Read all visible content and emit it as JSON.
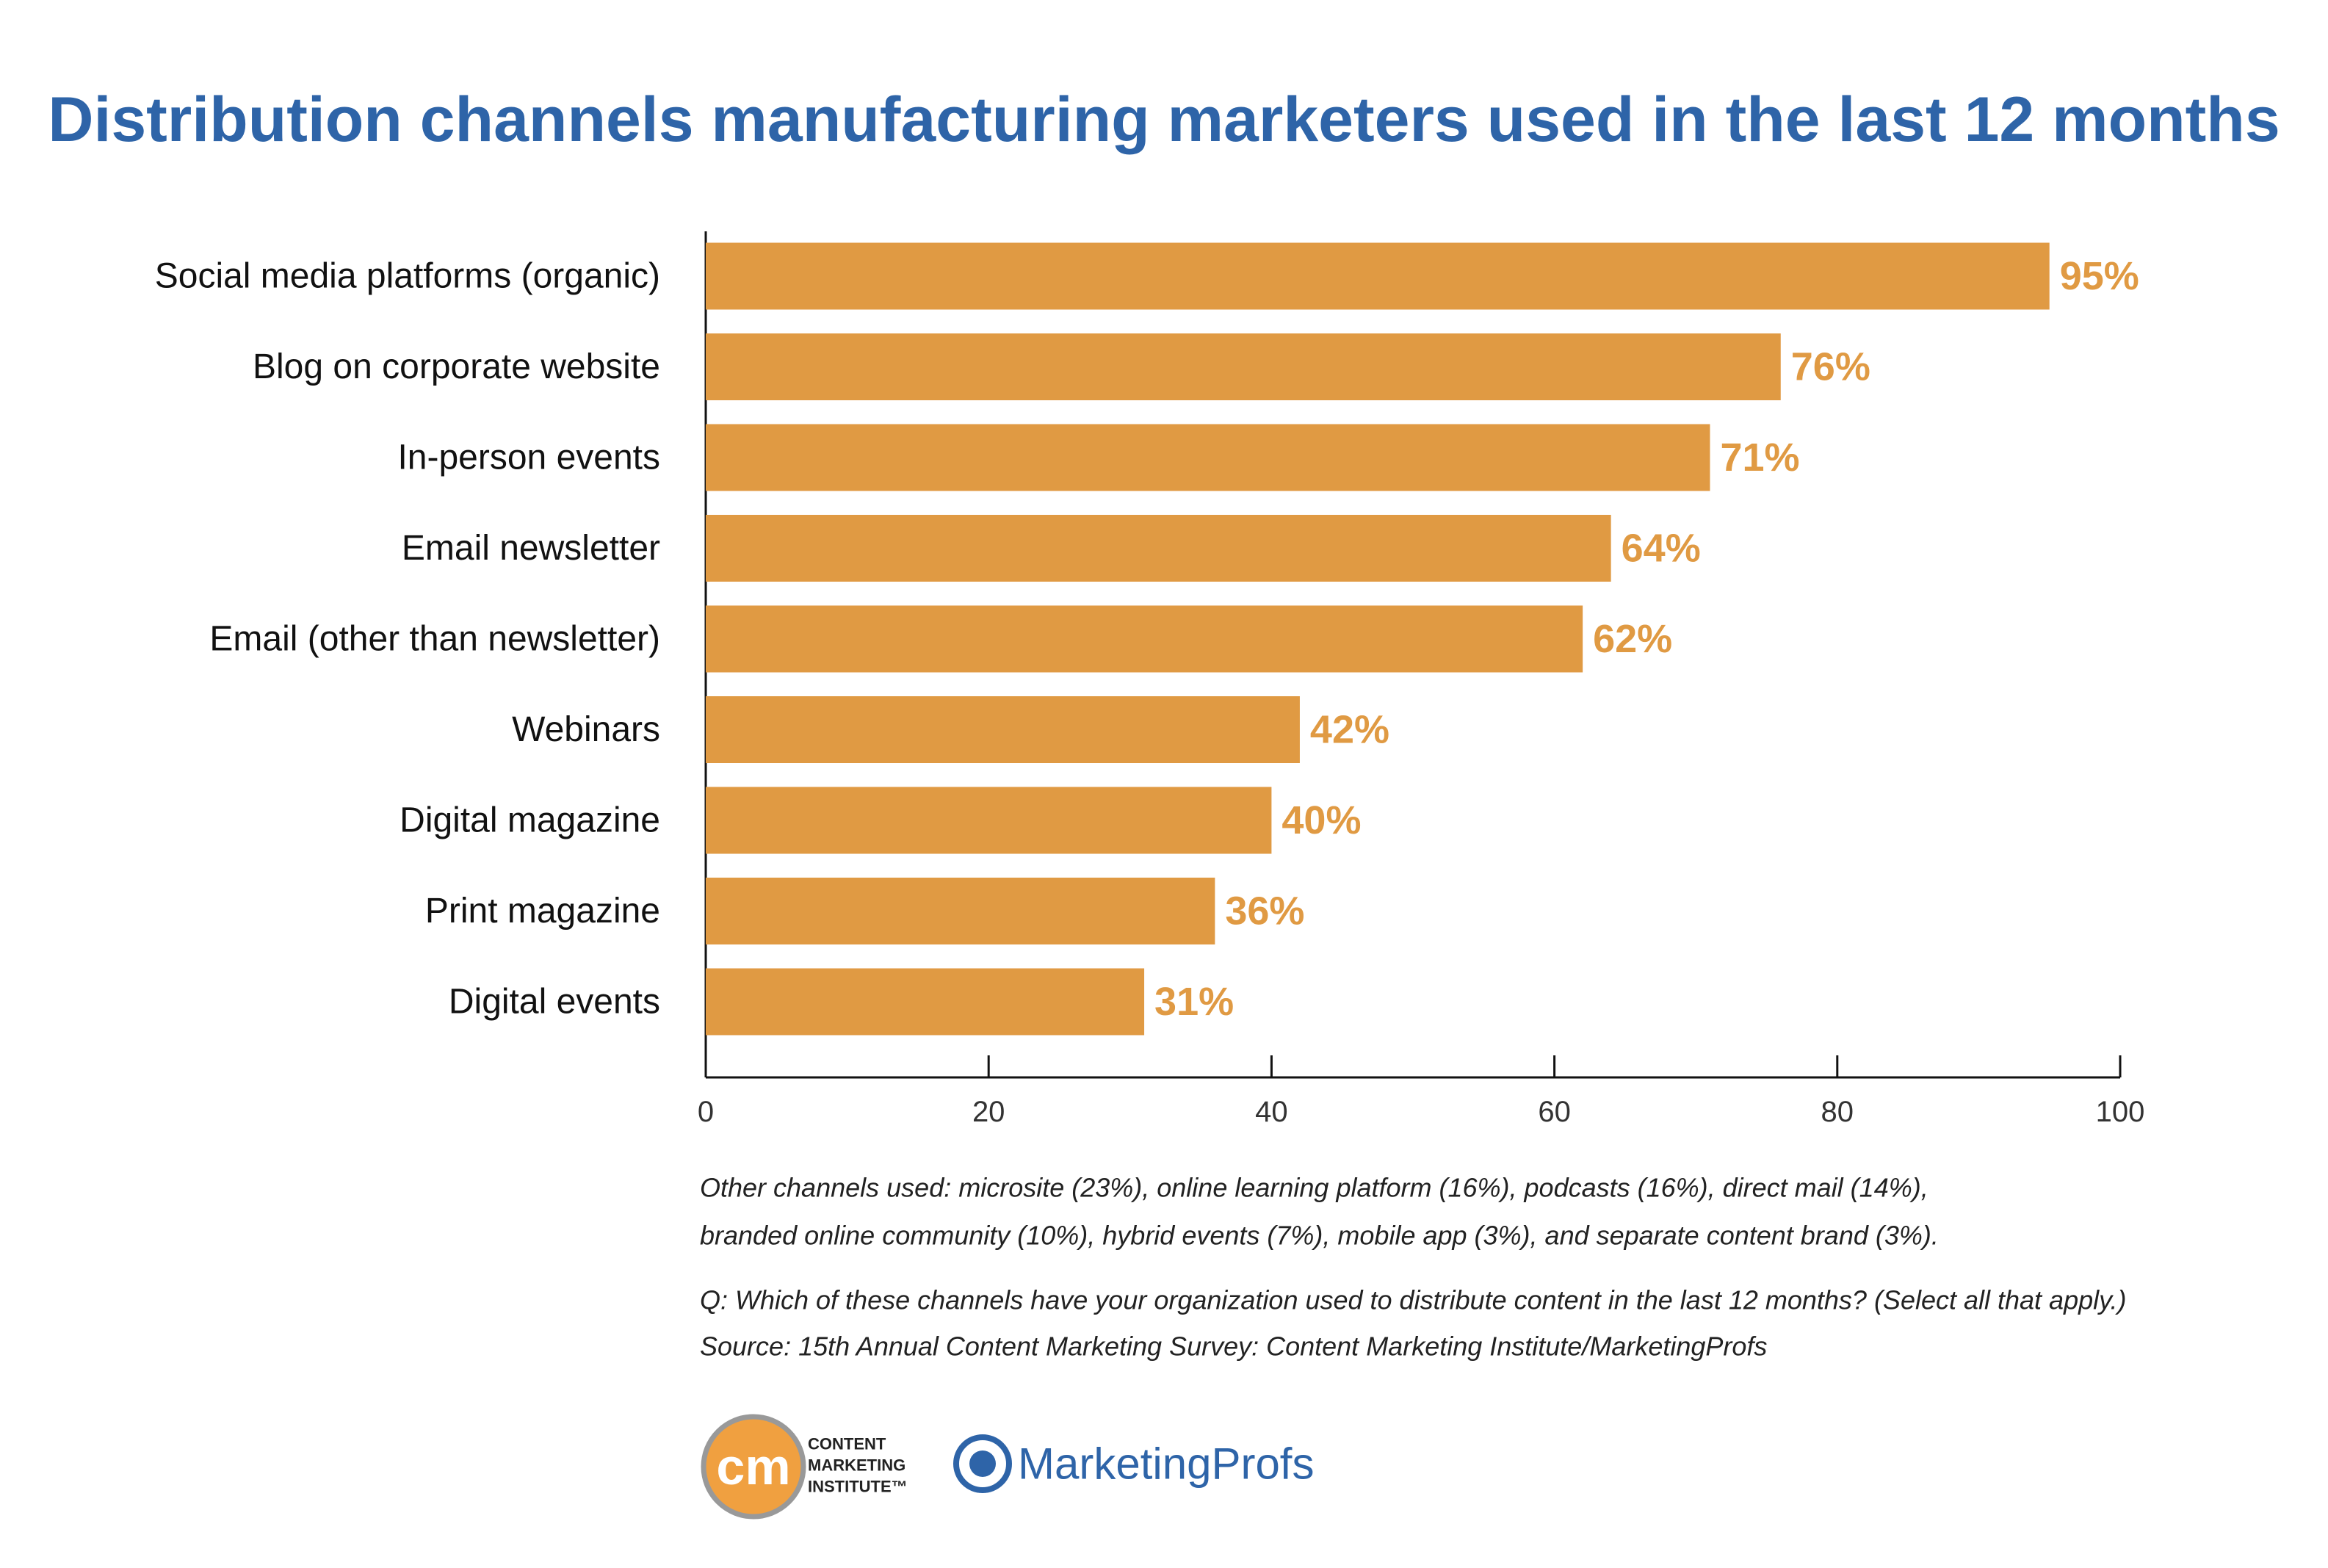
{
  "chart_data": {
    "type": "bar",
    "orientation": "horizontal",
    "title": "Distribution channels manufacturing marketers used in the last 12 months",
    "categories": [
      "Social media platforms (organic)",
      "Blog on corporate website",
      "In-person events",
      "Email newsletter",
      "Email (other than newsletter)",
      "Webinars",
      "Digital magazine",
      "Print magazine",
      "Digital events"
    ],
    "values": [
      95,
      76,
      71,
      64,
      62,
      42,
      40,
      36,
      31
    ],
    "value_labels": [
      "95%",
      "76%",
      "71%",
      "64%",
      "62%",
      "42%",
      "40%",
      "36%",
      "31%"
    ],
    "color": "#e09a43",
    "xlim": [
      0,
      100
    ],
    "xticks": [
      0,
      20,
      40,
      60,
      80,
      100
    ],
    "notes": [
      "Other channels used: microsite (23%), online learning platform (16%), podcasts (16%), direct mail (14%),",
      "branded online community (10%), hybrid events (7%), mobile app (3%), and separate content brand (3%).",
      "Q: Which of these channels have your organization used to distribute content in the last 12 months? (Select all that apply.)",
      "Source: 15th Annual Content Marketing Survey: Content Marketing Institute/MarketingProfs"
    ]
  },
  "logos": {
    "cmi_mark": "cm",
    "cmi_text": [
      "CONTENT",
      "MARKETING",
      "INSTITUTE™"
    ],
    "marketingprofs": "MarketingProfs"
  }
}
